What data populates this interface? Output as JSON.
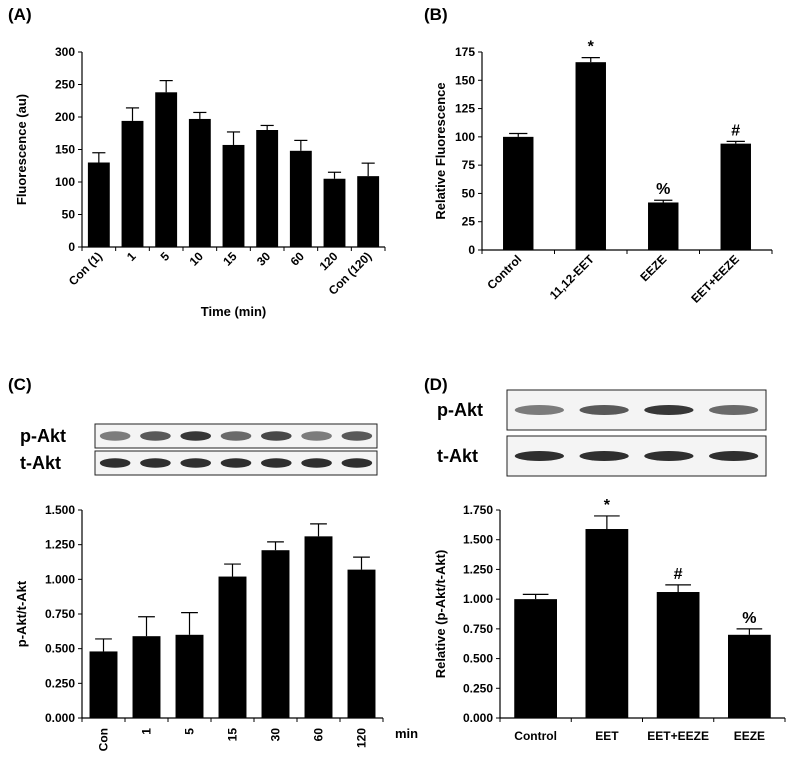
{
  "chart_data": [
    {
      "type": "bar",
      "title": "(A)",
      "y_label": "Fluorescence (au)",
      "x_label": "Time (min)",
      "categories": [
        "Con (1)",
        "1",
        "5",
        "10",
        "15",
        "30",
        "60",
        "120",
        "Con (120)"
      ],
      "values": [
        130,
        194,
        238,
        197,
        157,
        180,
        148,
        105,
        109
      ],
      "errors": [
        15,
        20,
        18,
        10,
        20,
        7,
        16,
        10,
        20
      ],
      "color": "#000000",
      "ylim": [
        0,
        300
      ],
      "yticks": [
        0,
        50,
        100,
        150,
        200,
        250,
        300
      ]
    },
    {
      "type": "bar",
      "title": "(B)",
      "y_label": "Relative Fluorescence",
      "categories": [
        "Control",
        "11,12-EET",
        "EEZE",
        "EET+EEZE"
      ],
      "values": [
        100,
        166,
        42,
        94
      ],
      "errors": [
        3,
        4,
        2,
        2
      ],
      "markers": [
        null,
        "*",
        "%",
        "#"
      ],
      "color": "#000000",
      "ylim": [
        0,
        175
      ],
      "yticks": [
        0,
        25,
        50,
        75,
        100,
        125,
        150,
        175
      ]
    },
    {
      "type": "bar",
      "title": "(C)",
      "blot_labels": [
        "p-Akt",
        "t-Akt"
      ],
      "y_label": "p-Akt/t-Akt",
      "x_label": "min",
      "categories": [
        "Con",
        "1",
        "5",
        "15",
        "30",
        "60",
        "120"
      ],
      "values": [
        0.48,
        0.59,
        0.6,
        1.02,
        1.21,
        1.31,
        1.07
      ],
      "errors": [
        0.09,
        0.14,
        0.16,
        0.09,
        0.06,
        0.09,
        0.09
      ],
      "color": "#000000",
      "ylim": [
        0,
        1.5
      ],
      "yticks": [
        {
          "value": 0,
          "label": "0.000"
        },
        {
          "value": 0.25,
          "label": "0.250"
        },
        {
          "value": 0.5,
          "label": "0.500"
        },
        {
          "value": 0.75,
          "label": "0.750"
        },
        {
          "value": 1,
          "label": "1.000"
        },
        {
          "value": 1.25,
          "label": "1.250"
        },
        {
          "value": 1.5,
          "label": "1.500"
        }
      ]
    },
    {
      "type": "bar",
      "title": "(D)",
      "blot_labels": [
        "p-Akt",
        "t-Akt"
      ],
      "y_label": "Relative (p-Akt/t-Akt)",
      "categories": [
        "Control",
        "EET",
        "EET+EEZE",
        "EEZE"
      ],
      "values": [
        1.0,
        1.59,
        1.06,
        0.7
      ],
      "errors": [
        0.04,
        0.11,
        0.06,
        0.05
      ],
      "markers": [
        null,
        "*",
        "#",
        "%"
      ],
      "color": "#000000",
      "ylim": [
        0,
        1.75
      ],
      "yticks": [
        {
          "value": 0,
          "label": "0.000"
        },
        {
          "value": 0.25,
          "label": "0.250"
        },
        {
          "value": 0.5,
          "label": "0.500"
        },
        {
          "value": 0.75,
          "label": "0.750"
        },
        {
          "value": 1,
          "label": "1.000"
        },
        {
          "value": 1.25,
          "label": "1.250"
        },
        {
          "value": 1.5,
          "label": "1.500"
        },
        {
          "value": 1.75,
          "label": "1.750"
        }
      ]
    }
  ]
}
